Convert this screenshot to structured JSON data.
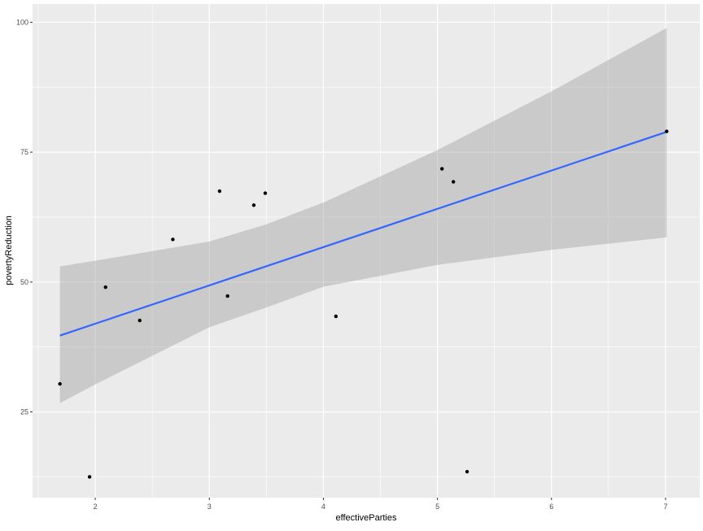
{
  "chart_data": {
    "type": "scatter",
    "title": "",
    "xlabel": "effectiveParties",
    "ylabel": "povertyReduction",
    "xlim": [
      1.45,
      7.3
    ],
    "ylim": [
      8.5,
      103.5
    ],
    "x_ticks": [
      2,
      3,
      4,
      5,
      6,
      7
    ],
    "y_ticks": [
      25,
      50,
      75,
      100
    ],
    "grid": true,
    "points": [
      {
        "x": 1.69,
        "y": 30.4
      },
      {
        "x": 1.95,
        "y": 12.5
      },
      {
        "x": 2.09,
        "y": 49.0
      },
      {
        "x": 2.39,
        "y": 42.6
      },
      {
        "x": 2.68,
        "y": 58.2
      },
      {
        "x": 3.09,
        "y": 67.5
      },
      {
        "x": 3.16,
        "y": 47.3
      },
      {
        "x": 3.39,
        "y": 64.8
      },
      {
        "x": 3.49,
        "y": 67.1
      },
      {
        "x": 4.11,
        "y": 43.4
      },
      {
        "x": 5.04,
        "y": 71.8
      },
      {
        "x": 5.14,
        "y": 69.3
      },
      {
        "x": 5.26,
        "y": 13.5
      },
      {
        "x": 7.01,
        "y": 79.0
      }
    ],
    "fit_line": {
      "method": "lm",
      "x": [
        1.69,
        7.01
      ],
      "y": [
        39.7,
        78.9
      ],
      "color": "#3366FF"
    },
    "confidence_band": {
      "x": [
        1.69,
        2,
        3,
        3.5,
        4,
        5,
        6,
        7.01
      ],
      "upper": [
        53.0,
        54.1,
        57.8,
        61.1,
        65.3,
        75.4,
        86.7,
        98.9
      ],
      "lower": [
        26.7,
        30.3,
        41.3,
        45.1,
        49.1,
        53.3,
        56.2,
        58.6
      ]
    }
  }
}
